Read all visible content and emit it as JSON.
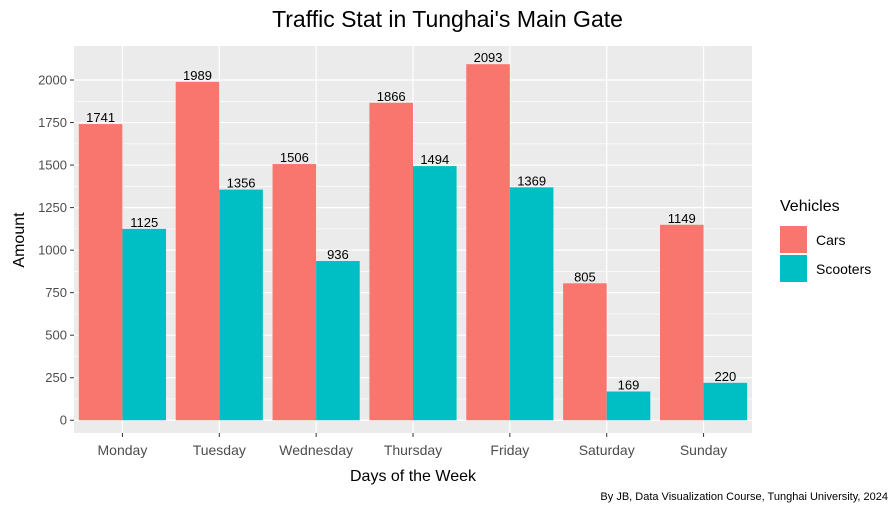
{
  "chart_data": {
    "type": "bar",
    "title": "Traffic Stat in Tunghai's Main Gate",
    "xlabel": "Days of the Week",
    "ylabel": "Amount",
    "caption": "By JB, Data Visualization Course, Tunghai University, 2024",
    "categories": [
      "Monday",
      "Tuesday",
      "Wednesday",
      "Thursday",
      "Friday",
      "Saturday",
      "Sunday"
    ],
    "series": [
      {
        "name": "Cars",
        "color": "#F8766D",
        "values": [
          1741,
          1989,
          1506,
          1866,
          2093,
          805,
          1149
        ]
      },
      {
        "name": "Scooters",
        "color": "#00BFC4",
        "values": [
          1125,
          1356,
          936,
          1494,
          1369,
          169,
          220
        ]
      }
    ],
    "ylim": [
      -75,
      2200
    ],
    "yticks": [
      0,
      250,
      500,
      750,
      1000,
      1250,
      1500,
      1750,
      2000
    ],
    "legend": {
      "title": "Vehicles",
      "position": "right"
    },
    "grid": true,
    "background": "#EBEBEB"
  }
}
